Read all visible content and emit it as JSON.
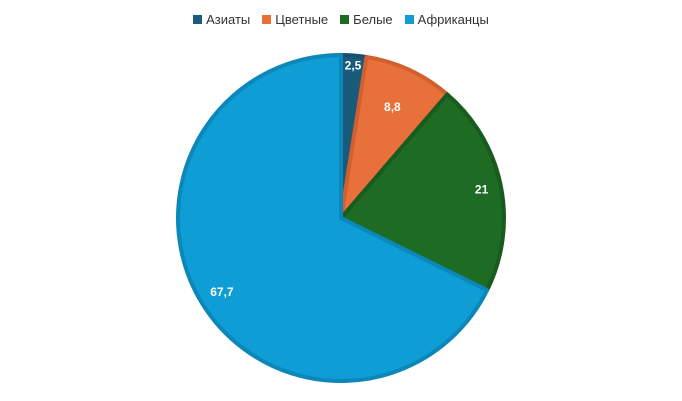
{
  "chart_data": {
    "type": "pie",
    "categories": [
      "Азиаты",
      "Цветные",
      "Белые",
      "Африканцы"
    ],
    "values": [
      2.5,
      8.8,
      21,
      67.7
    ],
    "value_labels": [
      "2,5",
      "8,8",
      "21",
      "67,7"
    ],
    "colors": [
      "#1a5b7c",
      "#e8703a",
      "#1e6b24",
      "#0f9dd6"
    ],
    "border_colors": [
      "#174f6c",
      "#d2602f",
      "#195a1f",
      "#0b87ba"
    ],
    "legend_placement": "top-center",
    "start_angle": "top, clockwise"
  }
}
